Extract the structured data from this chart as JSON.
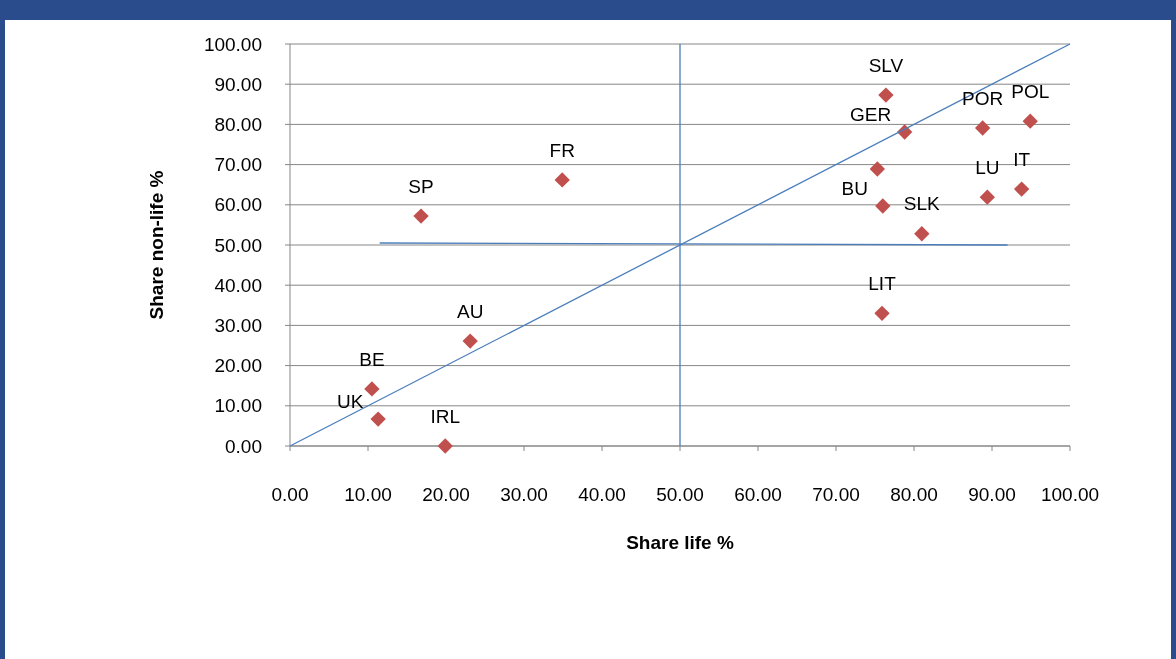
{
  "chart_data": {
    "type": "scatter",
    "xlabel": "Share life %",
    "ylabel": "Share non-life %",
    "xlim": [
      0,
      100
    ],
    "ylim": [
      0,
      100
    ],
    "xticks": [
      {
        "value": 0,
        "label": "0.00"
      },
      {
        "value": 10,
        "label": "10.00"
      },
      {
        "value": 20,
        "label": "20.00"
      },
      {
        "value": 30,
        "label": "30.00"
      },
      {
        "value": 40,
        "label": "40.00"
      },
      {
        "value": 50,
        "label": "50.00"
      },
      {
        "value": 60,
        "label": "60.00"
      },
      {
        "value": 70,
        "label": "70.00"
      },
      {
        "value": 80,
        "label": "80.00"
      },
      {
        "value": 90,
        "label": "90.00"
      },
      {
        "value": 100,
        "label": "100.00"
      }
    ],
    "yticks": [
      {
        "value": 0,
        "label": "0.00"
      },
      {
        "value": 10,
        "label": "10.00"
      },
      {
        "value": 20,
        "label": "20.00"
      },
      {
        "value": 30,
        "label": "30.00"
      },
      {
        "value": 40,
        "label": "40.00"
      },
      {
        "value": 50,
        "label": "50.00"
      },
      {
        "value": 60,
        "label": "60.00"
      },
      {
        "value": 70,
        "label": "70.00"
      },
      {
        "value": 80,
        "label": "80.00"
      },
      {
        "value": 90,
        "label": "90.00"
      },
      {
        "value": 100,
        "label": "100.00"
      }
    ],
    "grid": "y",
    "marker": "diamond",
    "series": [
      {
        "color": "#c0504d",
        "x": [
          11.3,
          10.5,
          19.9,
          23.1,
          16.8,
          34.9,
          76.4,
          78.8,
          88.8,
          94.9,
          93.8,
          89.4,
          75.3,
          76.0,
          81.0,
          75.9
        ],
        "values": [
          6.7,
          14.2,
          0,
          26.1,
          57.2,
          66.2,
          87.3,
          78.1,
          79.1,
          80.8,
          63.9,
          61.9,
          68.9,
          59.7,
          52.8,
          33.0
        ],
        "value_labels": [
          "UK",
          "BE",
          "IRL",
          "AU",
          "SP",
          "FR",
          "SLV",
          "GER",
          "POR",
          "POL",
          "IT",
          "LU",
          null,
          "BU",
          "SLK",
          "LIT"
        ]
      },
      {
        "type": "line",
        "marker": "none",
        "color": "#4a7ebb",
        "x": [
          0,
          100
        ],
        "values": [
          0,
          100
        ]
      },
      {
        "type": "line",
        "marker": "none",
        "color": "#4a7ebb",
        "x": [
          11.5,
          92
        ],
        "values": [
          50.5,
          50
        ]
      },
      {
        "type": "line",
        "marker": "none",
        "color": "#4a7ebb",
        "x": [
          50,
          50
        ],
        "values": [
          0,
          100
        ]
      }
    ]
  }
}
